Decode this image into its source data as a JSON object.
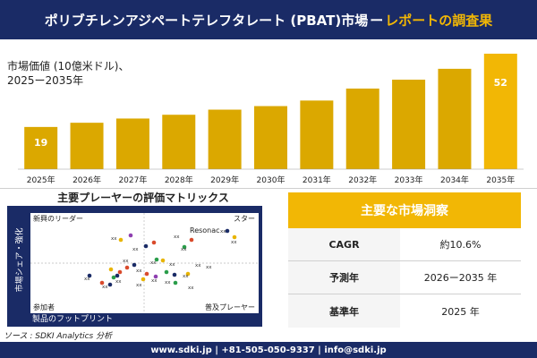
{
  "header": {
    "title_main": "ポリブチレンアジペートテレフタレート (PBAT)市場",
    "title_dash": "ー",
    "title_accent": "レポートの調査果"
  },
  "chart_label": "市場価値 (10億米ドル)、\n2025ー2035年",
  "chart_data": {
    "type": "bar",
    "categories": [
      "2025年",
      "2026年",
      "2027年",
      "2028年",
      "2029年",
      "2030年",
      "2031年",
      "2032年",
      "2033年",
      "2034年",
      "2035年"
    ],
    "values": [
      19,
      20.9,
      22.8,
      24.5,
      26.8,
      28.4,
      30.9,
      36.3,
      40.3,
      45.2,
      52
    ],
    "data_labels": {
      "0": "19",
      "10": "52"
    },
    "ylim": [
      0,
      52
    ],
    "bar_color": "#dba800",
    "bar_color_last": "#f2b705",
    "grid": false
  },
  "matrix": {
    "title": "主要プレーヤーの評価マトリックス",
    "y_axis_label": "市場シェア・強化",
    "x_axis_label": "製品のフットプリント",
    "quadrants": {
      "top_left": "新興のリーダー",
      "top_right": "スター",
      "bottom_left": "参加者",
      "bottom_right": "普及プレーヤー"
    },
    "named_player": "Resonac",
    "placeholder_label": "xx"
  },
  "info_panel": {
    "title": "主要な市場洞察",
    "rows": [
      {
        "key": "CAGR",
        "value": "約10.6%"
      },
      {
        "key": "予測年",
        "value": "2026ー2035 年"
      },
      {
        "key": "基準年",
        "value": "2025 年"
      }
    ]
  },
  "source": "ソース : SDKI Analytics 分析",
  "footer": "www.sdki.jp | +81-505-050-9337 | info@sdki.jp",
  "colors": {
    "navy": "#1a2b66",
    "gold": "#f2b705",
    "bar": "#dba800"
  }
}
